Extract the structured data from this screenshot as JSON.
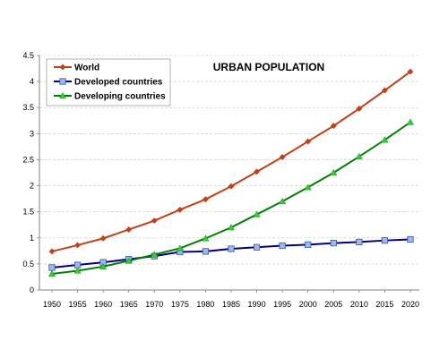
{
  "chart_data": {
    "type": "line",
    "title": "URBAN POPULATION",
    "xlabel": "",
    "ylabel": "",
    "x": [
      1950,
      1955,
      1960,
      1965,
      1970,
      1975,
      1980,
      1985,
      1990,
      1995,
      2000,
      2005,
      2010,
      2015,
      2020
    ],
    "ylim": [
      0,
      4.5
    ],
    "y_ticks": [
      0,
      0.5,
      1,
      1.5,
      2,
      2.5,
      3,
      3.5,
      4,
      4.5
    ],
    "grid": true,
    "legend_position": "top-left",
    "series": [
      {
        "name": "World",
        "color": "#C0401A",
        "marker": "diamond",
        "values": [
          0.74,
          0.86,
          0.99,
          1.16,
          1.33,
          1.54,
          1.74,
          1.99,
          2.27,
          2.55,
          2.85,
          3.15,
          3.48,
          3.83,
          4.19
        ]
      },
      {
        "name": "Developed countries",
        "color": "#000080",
        "marker": "square",
        "values": [
          0.43,
          0.48,
          0.53,
          0.59,
          0.65,
          0.73,
          0.74,
          0.79,
          0.82,
          0.85,
          0.87,
          0.9,
          0.92,
          0.95,
          0.97
        ]
      },
      {
        "name": "Developing countries",
        "color": "#008000",
        "marker": "triangle",
        "values": [
          0.31,
          0.37,
          0.45,
          0.56,
          0.68,
          0.8,
          0.99,
          1.2,
          1.45,
          1.7,
          1.97,
          2.25,
          2.56,
          2.88,
          3.22
        ]
      }
    ]
  }
}
